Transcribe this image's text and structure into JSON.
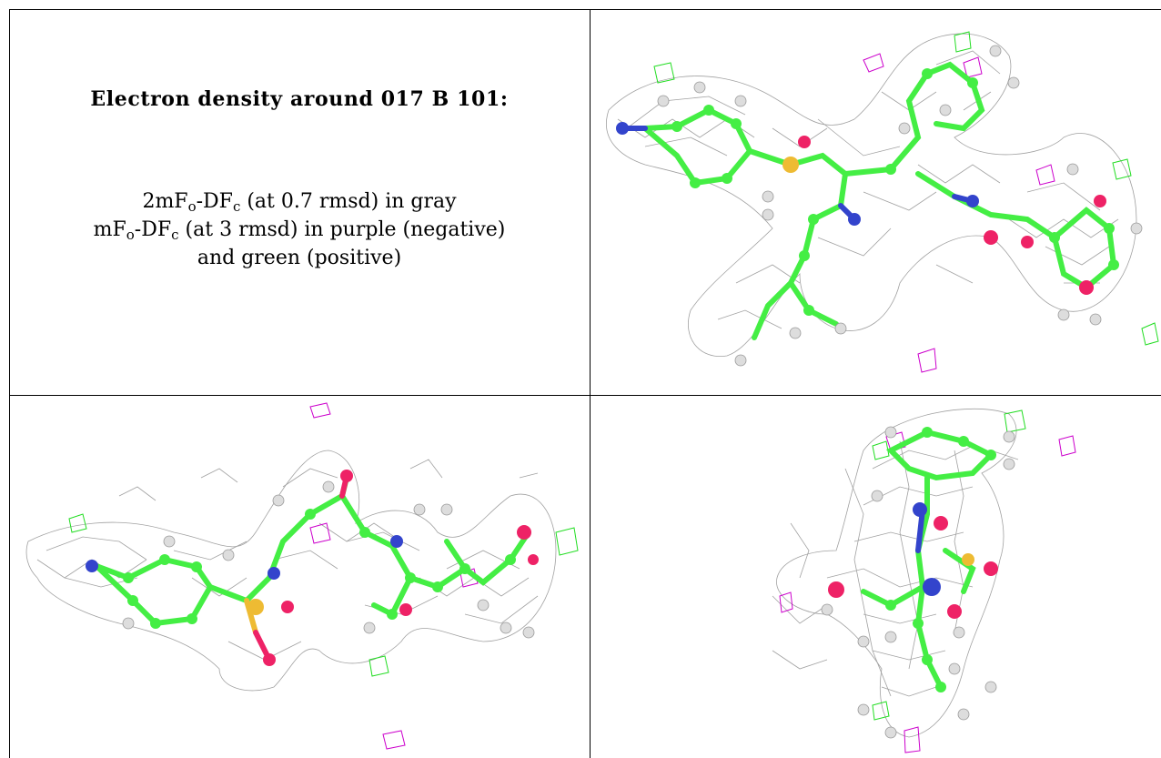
{
  "title": "Electron density around 017 B 101:",
  "legend": {
    "line1": {
      "map": "2mF",
      "sub1": "o",
      "mid": "-DF",
      "sub2": "c",
      "tail": " (at 0.7 rmsd) in gray"
    },
    "line2": {
      "map": "mF",
      "sub1": "o",
      "mid": "-DF",
      "sub2": "c",
      "tail": " (at 3 rmsd) in purple (negative)"
    },
    "line3": "and green (positive)"
  },
  "colors": {
    "carbon": "#44ee44",
    "nitrogen": "#3344cc",
    "oxygen": "#ee2266",
    "sulfur": "#eebb33",
    "hydrogen": "#dddddd",
    "mesh_2fofc": "#888888",
    "mesh_negative": "#cc00cc",
    "mesh_positive": "#22dd22"
  },
  "panels": [
    {
      "view": "top-right",
      "icon": "molecule-density-view-1"
    },
    {
      "view": "bottom-left",
      "icon": "molecule-density-view-2"
    },
    {
      "view": "bottom-right",
      "icon": "molecule-density-view-3"
    }
  ]
}
